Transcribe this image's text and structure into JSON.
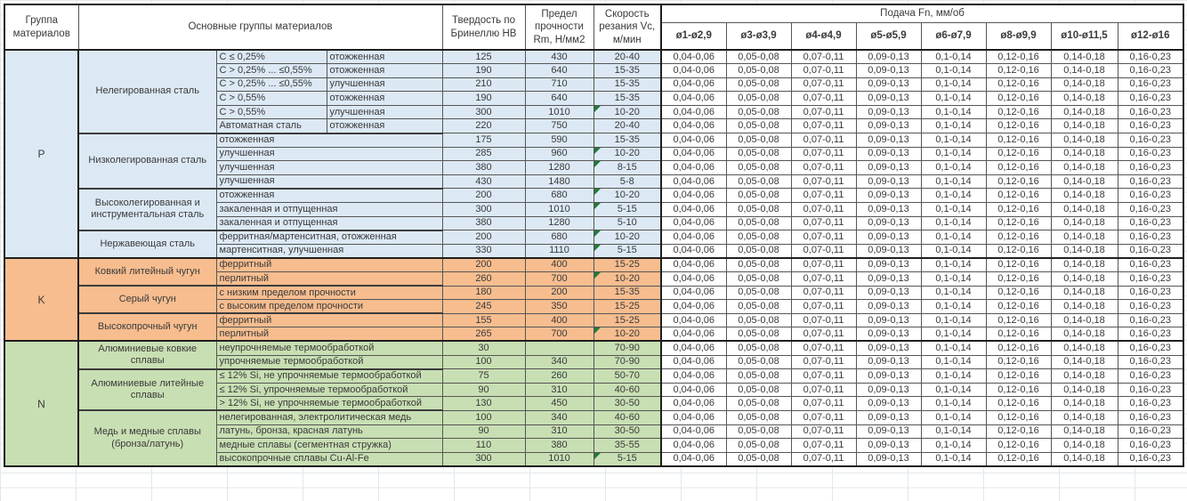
{
  "header": {
    "col_group": "Группа материалов",
    "col_materials": "Основные группы материалов",
    "col_hb": "Твердость по Бринеллю HB",
    "col_rm": "Предел прочности Rm, Н/мм2",
    "col_vc": "Скорость резания Vc, м/мин",
    "feed_title": "Подача Fn, мм/об",
    "feed_cols": [
      "ø1-ø2,9",
      "ø3-ø3,9",
      "ø4-ø4,9",
      "ø5-ø5,9",
      "ø6-ø7,9",
      "ø8-ø9,9",
      "ø10-ø11,5",
      "ø12-ø16"
    ]
  },
  "feed_values": [
    "0,04-0,06",
    "0,05-0,08",
    "0,07-0,11",
    "0,09-0,13",
    "0,1-0,14",
    "0,12-0,16",
    "0,14-0,18",
    "0,16-0,23"
  ],
  "colors": {
    "group_p": "#dce9f5",
    "group_k": "#f7bd8f",
    "group_n": "#c8dfb3",
    "comment_marker": "#217a36"
  },
  "groups": [
    {
      "code": "P",
      "color": "#dce9f5",
      "materials": [
        {
          "name": "Нелегированная сталь",
          "rows": [
            {
              "spec": "C ≤ 0,25%",
              "state": "отожженная",
              "hb": "125",
              "rm": "430",
              "vc": "20-40",
              "note": false
            },
            {
              "spec": "C > 0,25% ... ≤0,55%",
              "state": "отожженная",
              "hb": "190",
              "rm": "640",
              "vc": "15-35",
              "note": false
            },
            {
              "spec": "C > 0,25% ... ≤0,55%",
              "state": "улучшенная",
              "hb": "210",
              "rm": "710",
              "vc": "15-35",
              "note": false
            },
            {
              "spec": "C > 0,55%",
              "state": "отожженная",
              "hb": "190",
              "rm": "640",
              "vc": "15-35",
              "note": false
            },
            {
              "spec": "C > 0,55%",
              "state": "улучшенная",
              "hb": "300",
              "rm": "1010",
              "vc": "10-20",
              "note": true
            },
            {
              "spec": "Автоматная сталь",
              "state": "отожженная",
              "hb": "220",
              "rm": "750",
              "vc": "20-40",
              "note": false
            }
          ]
        },
        {
          "name": "Низколегированная сталь",
          "rows": [
            {
              "spec": "отожженная",
              "hb": "175",
              "rm": "590",
              "vc": "15-35",
              "note": false
            },
            {
              "spec": "улучшенная",
              "hb": "285",
              "rm": "960",
              "vc": "10-20",
              "note": true
            },
            {
              "spec": "улучшенная",
              "hb": "380",
              "rm": "1280",
              "vc": "8-15",
              "note": true
            },
            {
              "spec": "улучшенная",
              "hb": "430",
              "rm": "1480",
              "vc": "5-8",
              "note": false
            }
          ]
        },
        {
          "name": "Высоколегированная и инструментальная сталь",
          "rows": [
            {
              "spec": "отожженная",
              "hb": "200",
              "rm": "680",
              "vc": "10-20",
              "note": true
            },
            {
              "spec": "закаленная и отпущенная",
              "hb": "300",
              "rm": "1010",
              "vc": "5-15",
              "note": true
            },
            {
              "spec": "закаленная и отпущенная",
              "hb": "380",
              "rm": "1280",
              "vc": "5-10",
              "note": false
            }
          ]
        },
        {
          "name": "Нержавеющая сталь",
          "rows": [
            {
              "spec": "ферритная/мартенситная, отожженная",
              "hb": "200",
              "rm": "680",
              "vc": "10-20",
              "note": true
            },
            {
              "spec": "мартенситная, улучшенная",
              "hb": "330",
              "rm": "1110",
              "vc": "5-15",
              "note": true
            }
          ]
        }
      ]
    },
    {
      "code": "K",
      "color": "#f7bd8f",
      "materials": [
        {
          "name": "Ковкий литейный чугун",
          "rows": [
            {
              "spec": "ферритный",
              "hb": "200",
              "rm": "400",
              "vc": "15-25",
              "note": false
            },
            {
              "spec": "перлитный",
              "hb": "260",
              "rm": "700",
              "vc": "10-20",
              "note": true
            }
          ]
        },
        {
          "name": "Серый чугун",
          "rows": [
            {
              "spec": "с низким пределом прочности",
              "hb": "180",
              "rm": "200",
              "vc": "15-35",
              "note": false
            },
            {
              "spec": "с высоким пределом прочности",
              "hb": "245",
              "rm": "350",
              "vc": "15-25",
              "note": false
            }
          ]
        },
        {
          "name": "Высокопрочный чугун",
          "rows": [
            {
              "spec": "ферритный",
              "hb": "155",
              "rm": "400",
              "vc": "15-25",
              "note": false
            },
            {
              "spec": "перлитный",
              "hb": "265",
              "rm": "700",
              "vc": "10-20",
              "note": true
            }
          ]
        }
      ]
    },
    {
      "code": "N",
      "color": "#c8dfb3",
      "materials": [
        {
          "name": "Алюминиевые ковкие сплавы",
          "rows": [
            {
              "spec": "неупрочняемые термообработкой",
              "hb": "30",
              "rm": "",
              "vc": "70-90",
              "note": false
            },
            {
              "spec": "упрочняемые термообработкой",
              "hb": "100",
              "rm": "340",
              "vc": "70-90",
              "note": false
            }
          ]
        },
        {
          "name": "Алюминиевые литейные сплавы",
          "rows": [
            {
              "spec": "≤ 12% Si, не упрочняемые термообработкой",
              "hb": "75",
              "rm": "260",
              "vc": "50-70",
              "note": false
            },
            {
              "spec": "≤ 12% Si, упрочняемые термообработкой",
              "hb": "90",
              "rm": "310",
              "vc": "40-60",
              "note": false
            },
            {
              "spec": "> 12% Si, не упрочняемые термообработкой",
              "hb": "130",
              "rm": "450",
              "vc": "30-50",
              "note": false
            }
          ]
        },
        {
          "name": "Медь и медные сплавы (бронза/латунь)",
          "rows": [
            {
              "spec": "нелегированная, электролитическая медь",
              "hb": "100",
              "rm": "340",
              "vc": "40-60",
              "note": false
            },
            {
              "spec": "латунь, бронза, красная латунь",
              "hb": "90",
              "rm": "310",
              "vc": "30-50",
              "note": false
            },
            {
              "spec": "медные сплавы (сегментная стружка)",
              "hb": "110",
              "rm": "380",
              "vc": "35-55",
              "note": false
            },
            {
              "spec": "высокопрочные сплавы Cu-Al-Fe",
              "hb": "300",
              "rm": "1010",
              "vc": "5-15",
              "note": true
            }
          ]
        }
      ]
    }
  ]
}
